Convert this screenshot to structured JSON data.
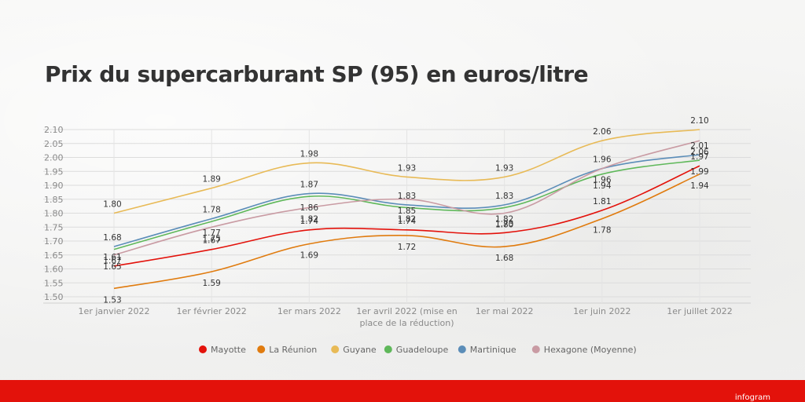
{
  "title": "Prix du supercarburant SP (95) en euros/litre",
  "brand": "infogram",
  "chart_data": {
    "type": "line",
    "title": "Prix du supercarburant SP (95) en euros/litre",
    "xlabel": "",
    "ylabel": "",
    "categories": [
      "1er janvier 2022",
      "1er février 2022",
      "1er mars 2022",
      "1er avril 2022 (mise en place de la réduction)",
      "1er mai 2022",
      "1er juin 2022",
      "1er juillet 2022"
    ],
    "category_lines": [
      [
        "1er janvier 2022"
      ],
      [
        "1er février 2022"
      ],
      [
        "1er mars 2022"
      ],
      [
        "1er avril 2022 (mise en",
        "place de la réduction)"
      ],
      [
        "1er mai 2022"
      ],
      [
        "1er juin 2022"
      ],
      [
        "1er juillet 2022"
      ]
    ],
    "ylim": [
      1.5,
      2.1
    ],
    "yticks": [
      "1.50",
      "1.55",
      "1.60",
      "1.65",
      "1.70",
      "1.75",
      "1.80",
      "1.85",
      "1.90",
      "1.95",
      "2.00",
      "2.05",
      "2.10"
    ],
    "grid": true,
    "legend": "bottom",
    "series": [
      {
        "name": "Mayotte",
        "color": "#e3120b",
        "values": [
          1.61,
          1.67,
          1.74,
          1.74,
          1.73,
          1.81,
          1.97
        ]
      },
      {
        "name": "La Réunion",
        "color": "#e07b0e",
        "values": [
          1.53,
          1.59,
          1.69,
          1.72,
          1.68,
          1.78,
          1.94
        ]
      },
      {
        "name": "Guyane",
        "color": "#e8ba56",
        "values": [
          1.8,
          1.89,
          1.98,
          1.93,
          1.93,
          2.06,
          2.1
        ]
      },
      {
        "name": "Guadeloupe",
        "color": "#5fb85a",
        "values": [
          1.67,
          1.77,
          1.86,
          1.82,
          1.82,
          1.94,
          1.99
        ]
      },
      {
        "name": "Martinique",
        "color": "#5b8db8",
        "values": [
          1.68,
          1.78,
          1.87,
          1.83,
          1.83,
          1.96,
          2.01
        ]
      },
      {
        "name": "Hexagone (Moyenne)",
        "color": "#c99ba3",
        "values": [
          1.65,
          1.75,
          1.82,
          1.85,
          1.8,
          1.96,
          2.06
        ]
      }
    ]
  }
}
